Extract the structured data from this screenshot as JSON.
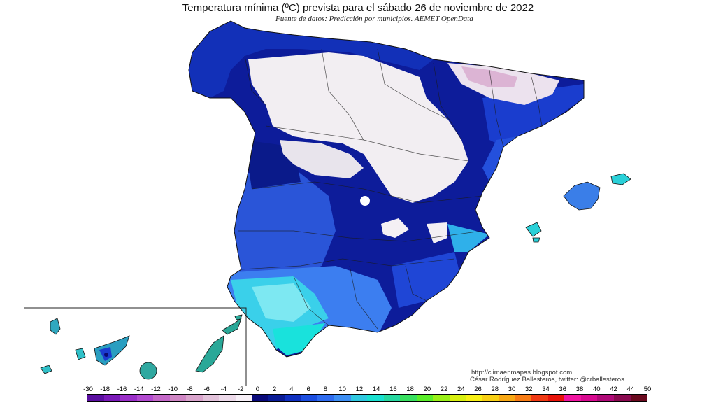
{
  "header": {
    "title": "Temperatura mínima (ºC) prevista para el sábado 26 de noviembre de 2022",
    "subtitle": "Fuente de datos: Predicción por municipios. AEMET OpenData"
  },
  "credits": {
    "url": "http://climaenmapas.blogspot.com",
    "author": "César Rodríguez Ballesteros, twitter: @crballesteros"
  },
  "legend": {
    "ticks": [
      "-30",
      "-18",
      "-16",
      "-14",
      "-12",
      "-10",
      "-8",
      "-6",
      "-4",
      "-2",
      "0",
      "2",
      "4",
      "6",
      "8",
      "10",
      "12",
      "14",
      "16",
      "18",
      "20",
      "22",
      "24",
      "26",
      "28",
      "30",
      "32",
      "34",
      "36",
      "38",
      "40",
      "42",
      "44",
      "50"
    ],
    "colors": [
      "#5a0fa0",
      "#7a1ab8",
      "#9a2fc8",
      "#b24ad0",
      "#c468c8",
      "#cf86c4",
      "#d9a4cc",
      "#e2c2da",
      "#eddaea",
      "#f7f0f7",
      "#0a0a7a",
      "#0a1c96",
      "#1030c0",
      "#1c4ee0",
      "#2f6cf0",
      "#3d8ff4",
      "#2fc8e0",
      "#19e0d0",
      "#27d8a0",
      "#38e060",
      "#5aee2a",
      "#9af018",
      "#d8f010",
      "#f8f014",
      "#f8d014",
      "#f8a814",
      "#f87c14",
      "#f03a14",
      "#e8140a",
      "#f014a0",
      "#d80a90",
      "#b00a78",
      "#8a0a50",
      "#6a0a1e"
    ]
  },
  "map": {
    "regions": [
      "Spain mainland",
      "Balearic Islands",
      "Canary Islands"
    ]
  }
}
